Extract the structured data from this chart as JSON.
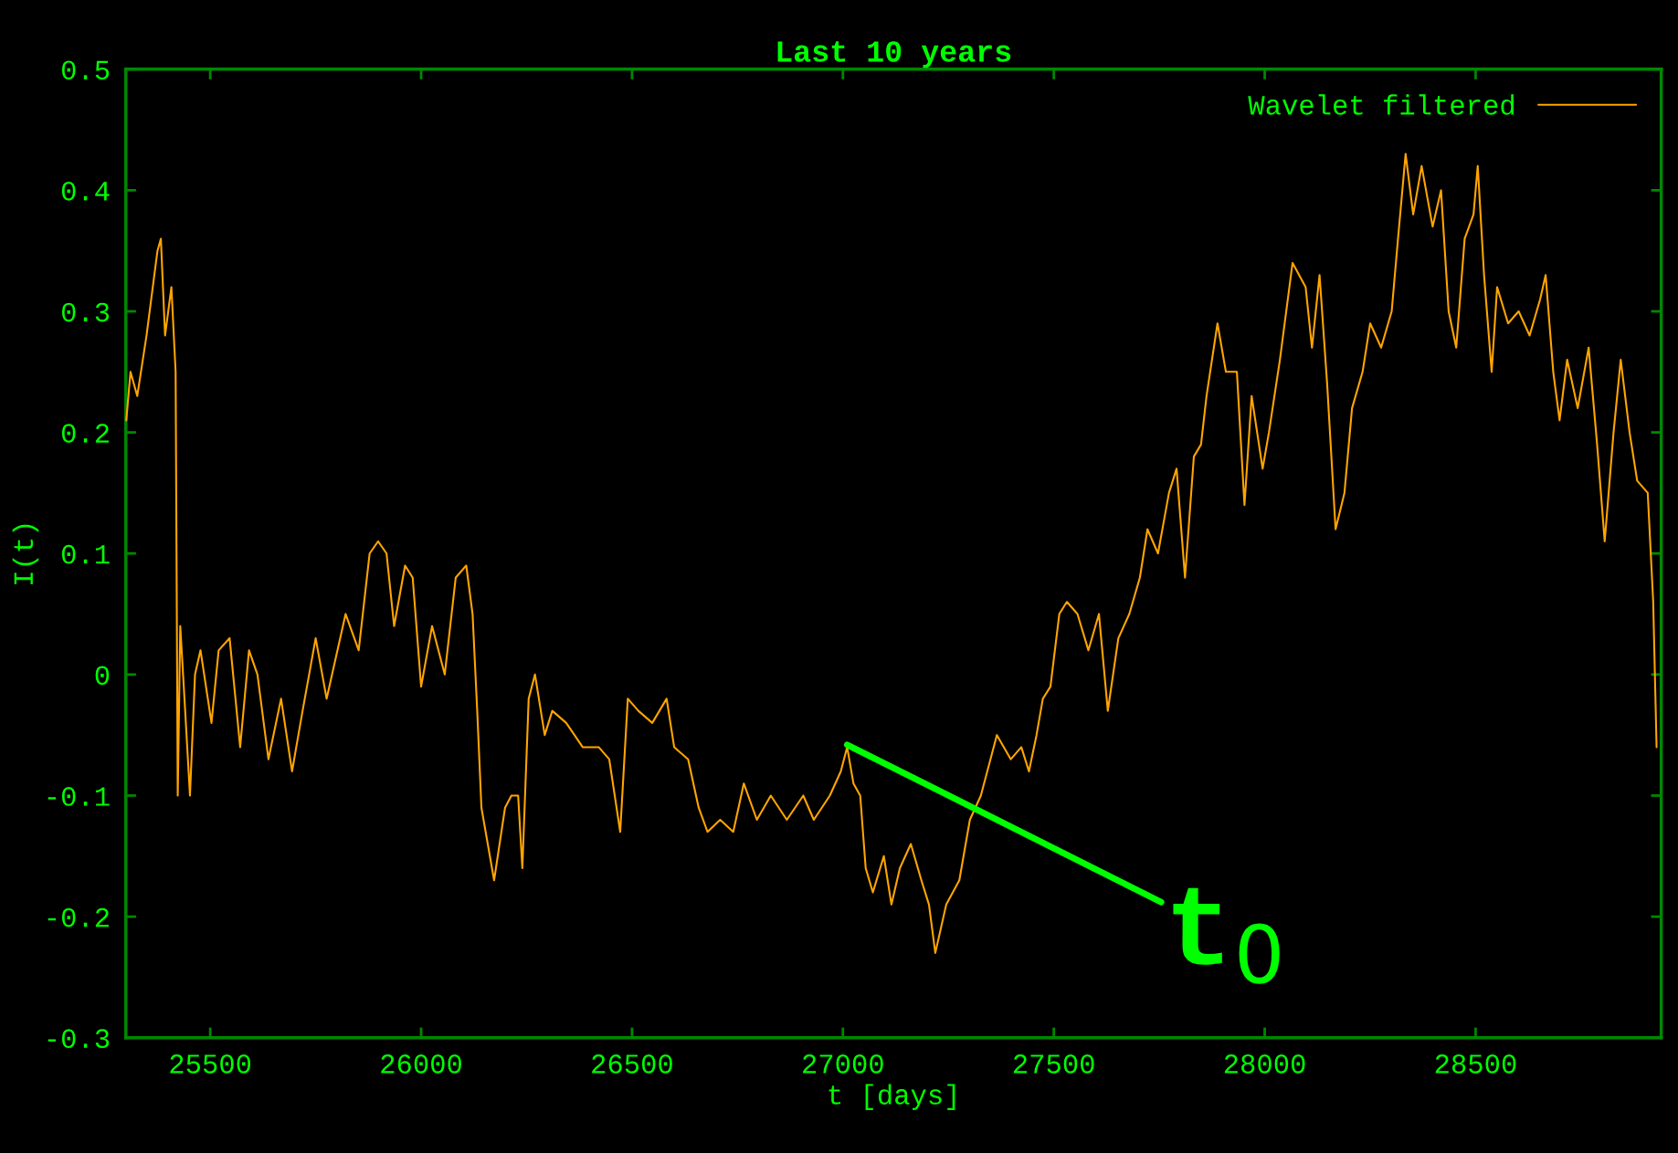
{
  "chart_data": {
    "type": "line",
    "title": "Last 10 years",
    "xlabel": "t [days]",
    "ylabel": "I(t)",
    "xlim": [
      25300,
      28940
    ],
    "xticks": [
      25500,
      26000,
      26500,
      27000,
      27500,
      28000,
      28500
    ],
    "ylim": [
      -0.3,
      0.5
    ],
    "yticks": [
      -0.3,
      -0.2,
      -0.1,
      0,
      0.1,
      0.2,
      0.3,
      0.4,
      0.5
    ],
    "grid": false,
    "legend": "top right",
    "marker": "none",
    "line_style": "solid",
    "annotations": [
      {
        "text": "t$_{0}$",
        "x": 27010,
        "y": -0.058
      }
    ],
    "series": [
      {
        "name": "Wavelet filtered",
        "color": "#ffa500",
        "x": [
          25301,
          25311,
          25327,
          25349,
          25375,
          25383,
          25393,
          25408,
          25418,
          25423,
          25429,
          25439,
          25452,
          25464,
          25477,
          25503,
          25520,
          25546,
          25571,
          25592,
          25612,
          25638,
          25668,
          25694,
          25719,
          25750,
          25776,
          25821,
          25852,
          25878,
          25898,
          25918,
          25936,
          25962,
          25980,
          26000,
          26026,
          26056,
          26082,
          26107,
          26122,
          26133,
          26143,
          26158,
          26173,
          26199,
          26214,
          26230,
          26240,
          26255,
          26270,
          26293,
          26311,
          26344,
          26383,
          26421,
          26446,
          26472,
          26490,
          26515,
          26548,
          26582,
          26600,
          26633,
          26658,
          26679,
          26709,
          26740,
          26765,
          26796,
          26829,
          26867,
          26906,
          26931,
          26969,
          26995,
          27010,
          27025,
          27041,
          27054,
          27071,
          27097,
          27115,
          27135,
          27161,
          27186,
          27204,
          27219,
          27245,
          27276,
          27301,
          27327,
          27365,
          27398,
          27423,
          27441,
          27459,
          27474,
          27492,
          27513,
          27531,
          27556,
          27582,
          27607,
          27628,
          27653,
          27679,
          27704,
          27722,
          27747,
          27773,
          27791,
          27811,
          27832,
          27849,
          27862,
          27888,
          27908,
          27934,
          27952,
          27969,
          27995,
          28010,
          28036,
          28066,
          28097,
          28112,
          28130,
          28148,
          28168,
          28189,
          28207,
          28232,
          28250,
          28276,
          28301,
          28316,
          28334,
          28352,
          28372,
          28398,
          28418,
          28436,
          28454,
          28474,
          28495,
          28505,
          28520,
          28538,
          28551,
          28577,
          28602,
          28628,
          28653,
          28666,
          28684,
          28699,
          28717,
          28742,
          28768,
          28788,
          28806,
          28827,
          28844,
          28865,
          28883,
          28908,
          28921,
          28929
        ],
        "values": [
          0.21,
          0.25,
          0.23,
          0.28,
          0.35,
          0.36,
          0.28,
          0.32,
          0.25,
          -0.1,
          0.04,
          -0.02,
          -0.1,
          0.0,
          0.02,
          -0.04,
          0.02,
          0.03,
          -0.06,
          0.02,
          0.0,
          -0.07,
          -0.02,
          -0.08,
          -0.03,
          0.03,
          -0.02,
          0.05,
          0.02,
          0.1,
          0.11,
          0.1,
          0.04,
          0.09,
          0.08,
          -0.01,
          0.04,
          0.0,
          0.08,
          0.09,
          0.05,
          -0.03,
          -0.11,
          -0.14,
          -0.17,
          -0.11,
          -0.1,
          -0.1,
          -0.16,
          -0.02,
          0.0,
          -0.05,
          -0.03,
          -0.04,
          -0.06,
          -0.06,
          -0.07,
          -0.13,
          -0.02,
          -0.03,
          -0.04,
          -0.02,
          -0.06,
          -0.07,
          -0.11,
          -0.13,
          -0.12,
          -0.13,
          -0.09,
          -0.12,
          -0.1,
          -0.12,
          -0.1,
          -0.12,
          -0.1,
          -0.08,
          -0.06,
          -0.09,
          -0.1,
          -0.16,
          -0.18,
          -0.15,
          -0.19,
          -0.16,
          -0.14,
          -0.17,
          -0.19,
          -0.23,
          -0.19,
          -0.17,
          -0.12,
          -0.1,
          -0.05,
          -0.07,
          -0.06,
          -0.08,
          -0.05,
          -0.02,
          -0.01,
          0.05,
          0.06,
          0.05,
          0.02,
          0.05,
          -0.03,
          0.03,
          0.05,
          0.08,
          0.12,
          0.1,
          0.15,
          0.17,
          0.08,
          0.18,
          0.19,
          0.23,
          0.29,
          0.25,
          0.25,
          0.14,
          0.23,
          0.17,
          0.2,
          0.26,
          0.34,
          0.32,
          0.27,
          0.33,
          0.24,
          0.12,
          0.15,
          0.22,
          0.25,
          0.29,
          0.27,
          0.3,
          0.36,
          0.43,
          0.38,
          0.42,
          0.37,
          0.4,
          0.3,
          0.27,
          0.36,
          0.38,
          0.42,
          0.33,
          0.25,
          0.32,
          0.29,
          0.3,
          0.28,
          0.31,
          0.33,
          0.25,
          0.21,
          0.26,
          0.22,
          0.27,
          0.19,
          0.11,
          0.2,
          0.26,
          0.2,
          0.16,
          0.15,
          0.06,
          -0.06
        ]
      }
    ]
  }
}
